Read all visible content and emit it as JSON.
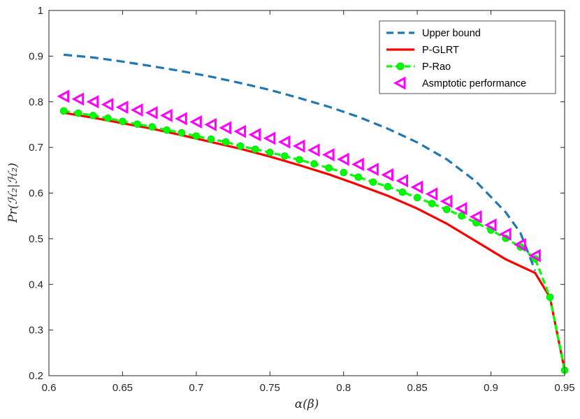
{
  "chart_data": {
    "type": "line",
    "title": "",
    "xlabel": "α(β)",
    "ylabel": "Pr(ℋ₂|ℋ₂)",
    "xlim": [
      0.6,
      0.95
    ],
    "ylim": [
      0.2,
      1.0
    ],
    "xticks": [
      "0.6",
      "0.65",
      "0.7",
      "0.75",
      "0.8",
      "0.85",
      "0.9",
      "0.95"
    ],
    "yticks": [
      "0.2",
      "0.3",
      "0.4",
      "0.5",
      "0.6",
      "0.7",
      "0.8",
      "0.9",
      "1"
    ],
    "legend_position": "top-right",
    "series": [
      {
        "name": "Upper bound",
        "color": "#1f77b4",
        "style": "dashed",
        "marker": "none",
        "x": [
          0.61,
          0.63,
          0.65,
          0.67,
          0.69,
          0.71,
          0.73,
          0.75,
          0.77,
          0.79,
          0.81,
          0.83,
          0.85,
          0.87,
          0.89,
          0.91,
          0.92,
          0.93
        ],
        "y": [
          0.903,
          0.897,
          0.888,
          0.878,
          0.867,
          0.855,
          0.841,
          0.826,
          0.808,
          0.789,
          0.767,
          0.741,
          0.711,
          0.674,
          0.625,
          0.558,
          0.513,
          0.43
        ]
      },
      {
        "name": "P-GLRT",
        "color": "#ff0000",
        "style": "solid",
        "marker": "none",
        "x": [
          0.61,
          0.63,
          0.65,
          0.67,
          0.69,
          0.71,
          0.73,
          0.75,
          0.77,
          0.79,
          0.81,
          0.83,
          0.85,
          0.87,
          0.89,
          0.91,
          0.93,
          0.94,
          0.95
        ],
        "y": [
          0.776,
          0.765,
          0.753,
          0.741,
          0.727,
          0.712,
          0.697,
          0.68,
          0.661,
          0.641,
          0.618,
          0.594,
          0.566,
          0.533,
          0.494,
          0.455,
          0.425,
          0.372,
          0.212
        ]
      },
      {
        "name": "P-Rao",
        "color": "#00ff00",
        "style": "dashed",
        "marker": "circle",
        "x": [
          0.61,
          0.62,
          0.63,
          0.64,
          0.65,
          0.66,
          0.67,
          0.68,
          0.69,
          0.7,
          0.71,
          0.72,
          0.73,
          0.74,
          0.75,
          0.76,
          0.77,
          0.78,
          0.79,
          0.8,
          0.81,
          0.82,
          0.83,
          0.84,
          0.85,
          0.86,
          0.87,
          0.88,
          0.89,
          0.9,
          0.91,
          0.92,
          0.93,
          0.94,
          0.95
        ],
        "y": [
          0.78,
          0.775,
          0.77,
          0.764,
          0.757,
          0.751,
          0.745,
          0.738,
          0.732,
          0.725,
          0.718,
          0.712,
          0.703,
          0.696,
          0.689,
          0.681,
          0.673,
          0.664,
          0.655,
          0.645,
          0.635,
          0.624,
          0.614,
          0.602,
          0.59,
          0.577,
          0.564,
          0.55,
          0.535,
          0.519,
          0.501,
          0.482,
          0.456,
          0.372,
          0.212
        ]
      },
      {
        "name": "Asmptotic performance",
        "color": "#ff00ff",
        "style": "none",
        "marker": "triangle-left",
        "x": [
          0.61,
          0.62,
          0.63,
          0.64,
          0.65,
          0.66,
          0.67,
          0.68,
          0.69,
          0.7,
          0.71,
          0.72,
          0.73,
          0.74,
          0.75,
          0.76,
          0.77,
          0.78,
          0.79,
          0.8,
          0.81,
          0.82,
          0.83,
          0.84,
          0.85,
          0.86,
          0.87,
          0.88,
          0.89,
          0.9,
          0.91,
          0.92,
          0.93
        ],
        "y": [
          0.812,
          0.806,
          0.8,
          0.794,
          0.788,
          0.782,
          0.776,
          0.77,
          0.763,
          0.756,
          0.75,
          0.743,
          0.735,
          0.728,
          0.72,
          0.712,
          0.703,
          0.694,
          0.684,
          0.674,
          0.663,
          0.652,
          0.64,
          0.627,
          0.613,
          0.598,
          0.582,
          0.566,
          0.548,
          0.53,
          0.51,
          0.487,
          0.463
        ]
      }
    ]
  }
}
